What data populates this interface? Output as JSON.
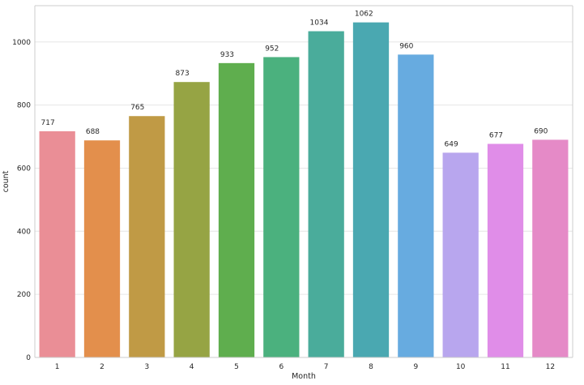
{
  "chart_data": {
    "type": "bar",
    "title": "",
    "xlabel": "Month",
    "ylabel": "count",
    "categories": [
      "1",
      "2",
      "3",
      "4",
      "5",
      "6",
      "7",
      "8",
      "9",
      "10",
      "11",
      "12"
    ],
    "values": [
      717,
      688,
      765,
      873,
      933,
      952,
      1034,
      1062,
      960,
      649,
      677,
      690
    ],
    "data_labels": [
      "717",
      "688",
      "765",
      "873",
      "933",
      "952",
      "1034",
      "1062",
      "960",
      "649",
      "677",
      "690"
    ],
    "ylim": [
      0,
      1115
    ],
    "yticks": [
      0,
      200,
      400,
      600,
      800,
      1000
    ],
    "ytick_labels": [
      "0",
      "200",
      "400",
      "600",
      "800",
      "1000"
    ],
    "grid": "horizontal",
    "legend": "none",
    "background": "#ffffff",
    "axis_color": "#cccccc",
    "grid_color": "#e6e6e6",
    "colors": [
      "#ea8e96",
      "#e38f4c",
      "#c09a45",
      "#96a444",
      "#5fae4e",
      "#4bb17e",
      "#4aac9b",
      "#4aa8b1",
      "#67abe0",
      "#b8a6ee",
      "#e08de8",
      "#e58ac7"
    ]
  }
}
